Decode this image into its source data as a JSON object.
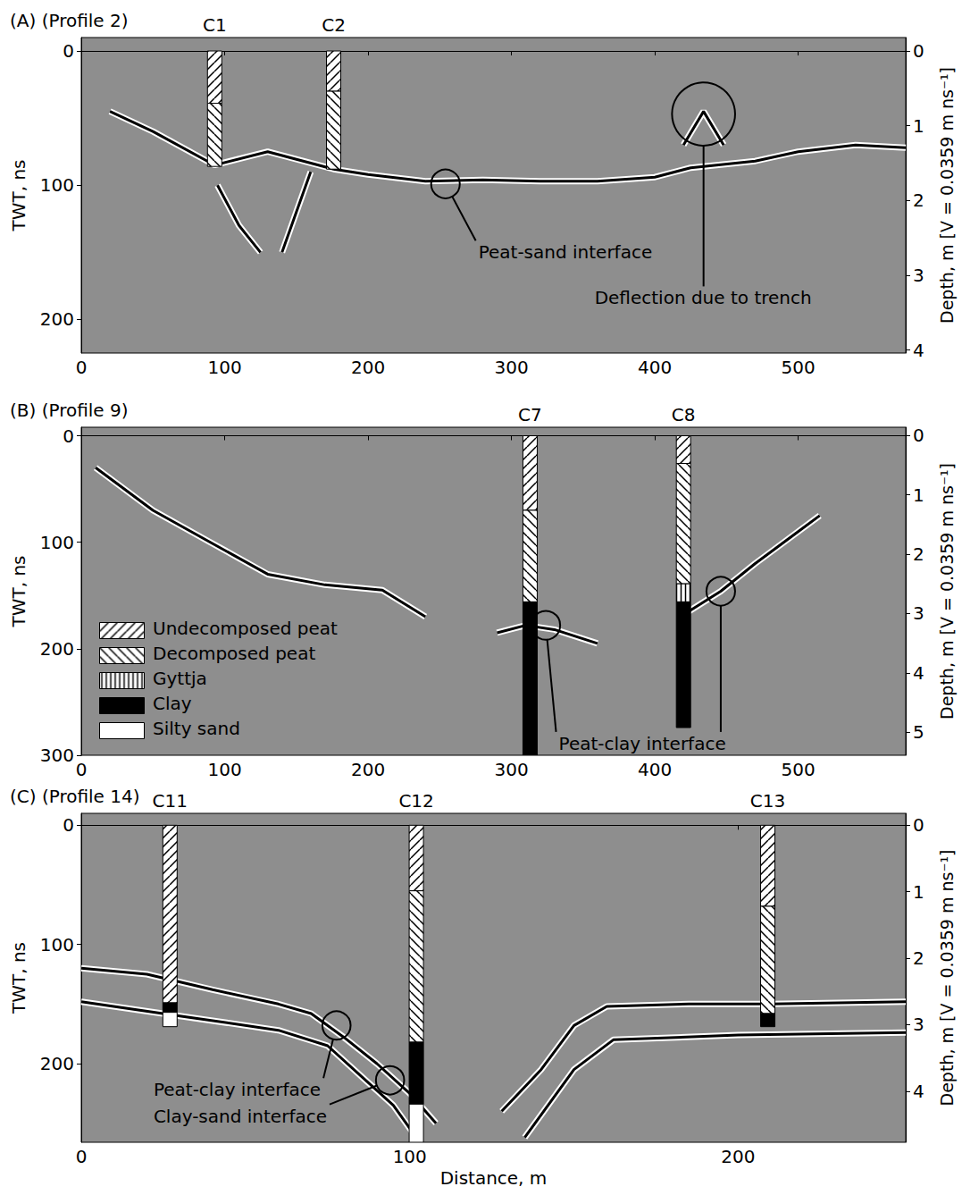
{
  "chart_data": [
    {
      "type": "line",
      "title": "(A) (Profile 2)",
      "color": "#000000",
      "grid": false,
      "xlim": [
        0,
        575
      ],
      "xticks": [
        0,
        100,
        200,
        300,
        400,
        500
      ],
      "ylim": [
        -10,
        225
      ],
      "yticks": [
        0,
        100,
        200
      ],
      "ylabel": "TWT, ns",
      "y2lim": [
        -0.18,
        4.04
      ],
      "y2ticks": [
        0,
        1,
        2,
        3,
        4
      ],
      "y2label": "Depth, m [V = 0.0359 m ns⁻¹]",
      "reflectors": [
        [
          [
            20,
            45
          ],
          [
            50,
            60
          ],
          [
            93,
            85
          ],
          [
            130,
            75
          ],
          [
            176,
            88
          ],
          [
            200,
            92
          ],
          [
            240,
            97
          ],
          [
            280,
            96
          ],
          [
            320,
            97
          ],
          [
            360,
            97
          ],
          [
            400,
            94
          ],
          [
            425,
            87
          ],
          [
            470,
            82
          ],
          [
            500,
            75
          ],
          [
            540,
            70
          ],
          [
            575,
            72
          ]
        ],
        [
          [
            420,
            70
          ],
          [
            434,
            45
          ],
          [
            448,
            70
          ]
        ],
        [
          [
            95,
            100
          ],
          [
            110,
            130
          ],
          [
            125,
            150
          ]
        ],
        [
          [
            140,
            150
          ],
          [
            150,
            120
          ],
          [
            160,
            90
          ]
        ]
      ],
      "cores": [
        {
          "name": "C1",
          "x": 93,
          "layers": [
            {
              "material": "Undecomposed peat",
              "top": 0,
              "bottom": 39
            },
            {
              "material": "Decomposed peat",
              "top": 39,
              "bottom": 86
            }
          ]
        },
        {
          "name": "C2",
          "x": 176,
          "layers": [
            {
              "material": "Undecomposed peat",
              "top": 0,
              "bottom": 30
            },
            {
              "material": "Decomposed peat",
              "top": 30,
              "bottom": 88
            }
          ]
        }
      ],
      "annotations": [
        {
          "text": "Peat-sand interface",
          "x": 277,
          "y": 150,
          "targets": [
            {
              "x": 254,
              "y": 99,
              "r": 10
            }
          ]
        },
        {
          "text": "Deflection due to trench",
          "x": 358,
          "y": 184,
          "targets": [
            {
              "x": 434,
              "y": 47,
              "r": 22
            }
          ]
        }
      ]
    },
    {
      "type": "line",
      "title": "(B) (Profile 9)",
      "color": "#000000",
      "grid": false,
      "legend": "lower left",
      "xlim": [
        0,
        575
      ],
      "xticks": [
        0,
        100,
        200,
        300,
        400,
        500
      ],
      "ylim": [
        -8,
        300
      ],
      "yticks": [
        0,
        100,
        200,
        300
      ],
      "ylabel": "TWT, ns",
      "y2lim": [
        -0.14,
        5.39
      ],
      "y2ticks": [
        0,
        1,
        2,
        3,
        4,
        5
      ],
      "y2label": "Depth, m [V = 0.0359 m ns⁻¹]",
      "reflectors": [
        [
          [
            10,
            30
          ],
          [
            50,
            70
          ],
          [
            90,
            100
          ],
          [
            130,
            130
          ],
          [
            170,
            140
          ],
          [
            210,
            145
          ],
          [
            240,
            170
          ]
        ],
        [
          [
            290,
            185
          ],
          [
            310,
            178
          ],
          [
            330,
            182
          ],
          [
            360,
            195
          ]
        ],
        [
          [
            420,
            168
          ],
          [
            446,
            146
          ],
          [
            470,
            120
          ],
          [
            500,
            90
          ],
          [
            515,
            75
          ]
        ]
      ],
      "cores": [
        {
          "name": "C7",
          "x": 313,
          "layers": [
            {
              "material": "Undecomposed peat",
              "top": 0,
              "bottom": 70
            },
            {
              "material": "Decomposed peat",
              "top": 70,
              "bottom": 156
            },
            {
              "material": "Clay",
              "top": 156,
              "bottom": 300
            }
          ]
        },
        {
          "name": "C8",
          "x": 420,
          "layers": [
            {
              "material": "Undecomposed peat",
              "top": 0,
              "bottom": 26
            },
            {
              "material": "Decomposed peat",
              "top": 26,
              "bottom": 139
            },
            {
              "material": "Gyttja",
              "top": 139,
              "bottom": 156
            },
            {
              "material": "Clay",
              "top": 156,
              "bottom": 274
            }
          ]
        }
      ],
      "annotations": [
        {
          "text": "Peat-clay interface",
          "x": 333,
          "y": 289,
          "targets": [
            {
              "x": 324,
              "y": 178,
              "r": 10
            },
            {
              "x": 446,
              "y": 146,
              "r": 10
            }
          ]
        }
      ]
    },
    {
      "type": "line",
      "title": "(C) (Profile 14)",
      "color": "#000000",
      "grid": false,
      "xlim": [
        0,
        251
      ],
      "xticks": [
        0,
        100,
        200
      ],
      "xlabel": "Distance, m",
      "ylim": [
        -10,
        266
      ],
      "yticks": [
        0,
        100,
        200
      ],
      "ylabel": "TWT, ns",
      "y2lim": [
        -0.18,
        4.77
      ],
      "y2ticks": [
        0,
        1,
        2,
        3,
        4
      ],
      "y2label": "Depth, m [V = 0.0359 m ns⁻¹]",
      "reflectors": [
        [
          [
            0,
            120
          ],
          [
            20,
            125
          ],
          [
            40,
            138
          ],
          [
            60,
            150
          ],
          [
            70,
            158
          ],
          [
            80,
            178
          ],
          [
            90,
            200
          ],
          [
            100,
            225
          ],
          [
            108,
            250
          ]
        ],
        [
          [
            0,
            148
          ],
          [
            30,
            160
          ],
          [
            60,
            172
          ],
          [
            75,
            185
          ],
          [
            85,
            210
          ],
          [
            95,
            235
          ],
          [
            102,
            262
          ]
        ],
        [
          [
            128,
            240
          ],
          [
            140,
            205
          ],
          [
            150,
            168
          ],
          [
            160,
            152
          ],
          [
            185,
            150
          ],
          [
            210,
            150
          ],
          [
            251,
            148
          ]
        ],
        [
          [
            135,
            262
          ],
          [
            150,
            205
          ],
          [
            162,
            180
          ],
          [
            200,
            176
          ],
          [
            251,
            174
          ]
        ]
      ],
      "cores": [
        {
          "name": "C11",
          "x": 27,
          "layers": [
            {
              "material": "Undecomposed peat",
              "top": 0,
              "bottom": 149
            },
            {
              "material": "Clay",
              "top": 149,
              "bottom": 157
            },
            {
              "material": "Silty sand",
              "top": 157,
              "bottom": 169
            }
          ]
        },
        {
          "name": "C12",
          "x": 102,
          "layers": [
            {
              "material": "Undecomposed peat",
              "top": 0,
              "bottom": 55
            },
            {
              "material": "Decomposed peat",
              "top": 55,
              "bottom": 182
            },
            {
              "material": "Clay",
              "top": 182,
              "bottom": 234
            },
            {
              "material": "Silty sand",
              "top": 234,
              "bottom": 266
            }
          ]
        },
        {
          "name": "C13",
          "x": 209,
          "layers": [
            {
              "material": "Undecomposed peat",
              "top": 0,
              "bottom": 68
            },
            {
              "material": "Decomposed peat",
              "top": 68,
              "bottom": 158
            },
            {
              "material": "Clay",
              "top": 158,
              "bottom": 169
            }
          ]
        }
      ],
      "annotations": [
        {
          "text": "Peat-clay interface",
          "x": 22,
          "y": 222,
          "targets": [
            {
              "x": 77.7,
              "y": 168,
              "r": 4.3
            }
          ]
        },
        {
          "text": "Clay-sand interface",
          "x": 22,
          "y": 244,
          "targets": [
            {
              "x": 94,
              "y": 214,
              "r": 4.3
            }
          ]
        }
      ]
    }
  ],
  "materials": [
    {
      "name": "Undecomposed peat",
      "color": "#ffffff"
    },
    {
      "name": "Decomposed peat",
      "color": "#ffffff"
    },
    {
      "name": "Gyttja",
      "color": "#ffffff"
    },
    {
      "name": "Clay",
      "color": "#000000"
    },
    {
      "name": "Silty sand",
      "color": "#ffffff"
    }
  ]
}
